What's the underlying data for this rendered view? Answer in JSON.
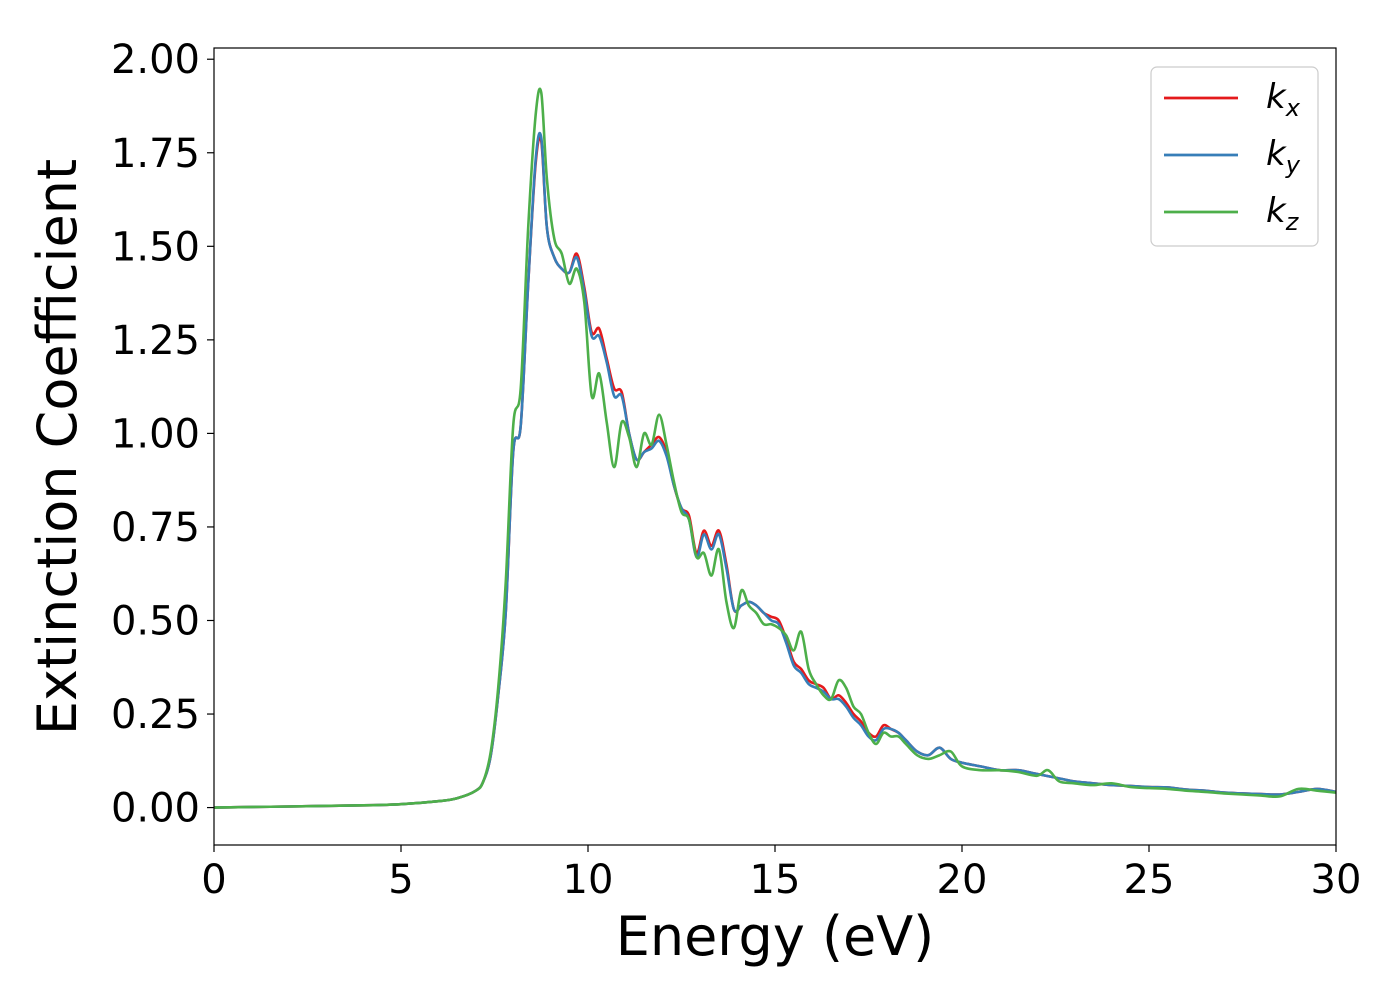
{
  "chart_data": {
    "type": "line",
    "xlabel": "Energy (eV)",
    "ylabel": "Extinction Coefficient",
    "xlim": [
      0,
      30
    ],
    "ylim": [
      -0.1,
      2.03
    ],
    "xticks": [
      0,
      5,
      10,
      15,
      20,
      25,
      30
    ],
    "xtick_labels": [
      "0",
      "5",
      "10",
      "15",
      "20",
      "25",
      "30"
    ],
    "yticks": [
      0,
      0.25,
      0.5,
      0.75,
      1.0,
      1.25,
      1.5,
      1.75,
      2.0
    ],
    "ytick_labels": [
      "0.00",
      "0.25",
      "0.50",
      "0.75",
      "1.00",
      "1.25",
      "1.50",
      "1.75",
      "2.00"
    ],
    "grid": false,
    "legend_position": "top-right",
    "series": [
      {
        "name": "k",
        "subscript": "x",
        "color": "#e41a1c",
        "points": [
          [
            0,
            0
          ],
          [
            2,
            0.003
          ],
          [
            4,
            0.006
          ],
          [
            5,
            0.009
          ],
          [
            6,
            0.017
          ],
          [
            6.5,
            0.025
          ],
          [
            7,
            0.045
          ],
          [
            7.2,
            0.07
          ],
          [
            7.4,
            0.14
          ],
          [
            7.6,
            0.3
          ],
          [
            7.8,
            0.52
          ],
          [
            8,
            0.95
          ],
          [
            8.2,
            1.02
          ],
          [
            8.4,
            1.4
          ],
          [
            8.6,
            1.72
          ],
          [
            8.75,
            1.78
          ],
          [
            8.9,
            1.55
          ],
          [
            9.1,
            1.47
          ],
          [
            9.3,
            1.44
          ],
          [
            9.5,
            1.43
          ],
          [
            9.7,
            1.48
          ],
          [
            9.9,
            1.39
          ],
          [
            10.1,
            1.27
          ],
          [
            10.3,
            1.28
          ],
          [
            10.5,
            1.2
          ],
          [
            10.7,
            1.12
          ],
          [
            10.9,
            1.11
          ],
          [
            11.1,
            1.0
          ],
          [
            11.3,
            0.93
          ],
          [
            11.5,
            0.95
          ],
          [
            11.7,
            0.97
          ],
          [
            11.9,
            0.99
          ],
          [
            12.1,
            0.95
          ],
          [
            12.3,
            0.86
          ],
          [
            12.5,
            0.8
          ],
          [
            12.7,
            0.78
          ],
          [
            12.9,
            0.68
          ],
          [
            13.1,
            0.74
          ],
          [
            13.3,
            0.7
          ],
          [
            13.5,
            0.74
          ],
          [
            13.7,
            0.65
          ],
          [
            13.9,
            0.53
          ],
          [
            14.1,
            0.54
          ],
          [
            14.3,
            0.55
          ],
          [
            14.5,
            0.54
          ],
          [
            14.7,
            0.52
          ],
          [
            14.9,
            0.51
          ],
          [
            15.1,
            0.5
          ],
          [
            15.3,
            0.45
          ],
          [
            15.5,
            0.39
          ],
          [
            15.7,
            0.37
          ],
          [
            15.9,
            0.34
          ],
          [
            16.1,
            0.33
          ],
          [
            16.3,
            0.32
          ],
          [
            16.5,
            0.29
          ],
          [
            16.7,
            0.3
          ],
          [
            16.9,
            0.28
          ],
          [
            17.1,
            0.25
          ],
          [
            17.3,
            0.23
          ],
          [
            17.5,
            0.2
          ],
          [
            17.7,
            0.19
          ],
          [
            17.9,
            0.22
          ],
          [
            18.1,
            0.21
          ],
          [
            18.3,
            0.2
          ],
          [
            18.5,
            0.18
          ],
          [
            18.8,
            0.15
          ],
          [
            19.1,
            0.14
          ],
          [
            19.4,
            0.16
          ],
          [
            19.7,
            0.13
          ],
          [
            20,
            0.12
          ],
          [
            20.5,
            0.11
          ],
          [
            21,
            0.1
          ],
          [
            21.5,
            0.1
          ],
          [
            22,
            0.09
          ],
          [
            22.5,
            0.08
          ],
          [
            23,
            0.07
          ],
          [
            23.5,
            0.065
          ],
          [
            24,
            0.06
          ],
          [
            24.5,
            0.058
          ],
          [
            25,
            0.055
          ],
          [
            25.5,
            0.054
          ],
          [
            26,
            0.048
          ],
          [
            26.5,
            0.045
          ],
          [
            27,
            0.04
          ],
          [
            27.5,
            0.038
          ],
          [
            28,
            0.036
          ],
          [
            28.5,
            0.035
          ],
          [
            29,
            0.042
          ],
          [
            29.5,
            0.05
          ],
          [
            30,
            0.042
          ]
        ]
      },
      {
        "name": "k",
        "subscript": "y",
        "color": "#377eb8",
        "points": [
          [
            0,
            0
          ],
          [
            2,
            0.003
          ],
          [
            4,
            0.006
          ],
          [
            5,
            0.009
          ],
          [
            6,
            0.017
          ],
          [
            6.5,
            0.025
          ],
          [
            7,
            0.045
          ],
          [
            7.2,
            0.07
          ],
          [
            7.4,
            0.14
          ],
          [
            7.6,
            0.3
          ],
          [
            7.8,
            0.52
          ],
          [
            8,
            0.95
          ],
          [
            8.2,
            1.02
          ],
          [
            8.4,
            1.4
          ],
          [
            8.6,
            1.73
          ],
          [
            8.75,
            1.79
          ],
          [
            8.9,
            1.55
          ],
          [
            9.1,
            1.47
          ],
          [
            9.3,
            1.44
          ],
          [
            9.5,
            1.43
          ],
          [
            9.7,
            1.47
          ],
          [
            9.9,
            1.38
          ],
          [
            10.1,
            1.26
          ],
          [
            10.3,
            1.26
          ],
          [
            10.5,
            1.19
          ],
          [
            10.7,
            1.1
          ],
          [
            10.9,
            1.1
          ],
          [
            11.1,
            1.0
          ],
          [
            11.3,
            0.93
          ],
          [
            11.5,
            0.95
          ],
          [
            11.7,
            0.96
          ],
          [
            11.9,
            0.98
          ],
          [
            12.1,
            0.94
          ],
          [
            12.3,
            0.86
          ],
          [
            12.5,
            0.8
          ],
          [
            12.7,
            0.77
          ],
          [
            12.9,
            0.67
          ],
          [
            13.1,
            0.73
          ],
          [
            13.3,
            0.69
          ],
          [
            13.5,
            0.73
          ],
          [
            13.7,
            0.64
          ],
          [
            13.9,
            0.53
          ],
          [
            14.1,
            0.54
          ],
          [
            14.3,
            0.55
          ],
          [
            14.5,
            0.54
          ],
          [
            14.7,
            0.52
          ],
          [
            14.9,
            0.5
          ],
          [
            15.1,
            0.49
          ],
          [
            15.3,
            0.44
          ],
          [
            15.5,
            0.38
          ],
          [
            15.7,
            0.36
          ],
          [
            15.9,
            0.33
          ],
          [
            16.1,
            0.32
          ],
          [
            16.3,
            0.31
          ],
          [
            16.5,
            0.29
          ],
          [
            16.7,
            0.29
          ],
          [
            16.9,
            0.27
          ],
          [
            17.1,
            0.24
          ],
          [
            17.3,
            0.22
          ],
          [
            17.5,
            0.19
          ],
          [
            17.7,
            0.18
          ],
          [
            17.9,
            0.21
          ],
          [
            18.1,
            0.21
          ],
          [
            18.3,
            0.2
          ],
          [
            18.5,
            0.18
          ],
          [
            18.8,
            0.15
          ],
          [
            19.1,
            0.14
          ],
          [
            19.4,
            0.16
          ],
          [
            19.7,
            0.13
          ],
          [
            20,
            0.12
          ],
          [
            20.5,
            0.11
          ],
          [
            21,
            0.1
          ],
          [
            21.5,
            0.1
          ],
          [
            22,
            0.09
          ],
          [
            22.5,
            0.08
          ],
          [
            23,
            0.07
          ],
          [
            23.5,
            0.065
          ],
          [
            24,
            0.06
          ],
          [
            24.5,
            0.058
          ],
          [
            25,
            0.055
          ],
          [
            25.5,
            0.054
          ],
          [
            26,
            0.048
          ],
          [
            26.5,
            0.045
          ],
          [
            27,
            0.04
          ],
          [
            27.5,
            0.038
          ],
          [
            28,
            0.036
          ],
          [
            28.5,
            0.035
          ],
          [
            29,
            0.042
          ],
          [
            29.5,
            0.05
          ],
          [
            30,
            0.042
          ]
        ]
      },
      {
        "name": "k",
        "subscript": "z",
        "color": "#4daf4a",
        "points": [
          [
            0,
            0
          ],
          [
            2,
            0.003
          ],
          [
            4,
            0.006
          ],
          [
            5,
            0.009
          ],
          [
            6,
            0.017
          ],
          [
            6.5,
            0.025
          ],
          [
            7,
            0.045
          ],
          [
            7.2,
            0.07
          ],
          [
            7.4,
            0.15
          ],
          [
            7.6,
            0.32
          ],
          [
            7.8,
            0.6
          ],
          [
            8,
            1.02
          ],
          [
            8.2,
            1.12
          ],
          [
            8.4,
            1.55
          ],
          [
            8.6,
            1.85
          ],
          [
            8.75,
            1.91
          ],
          [
            8.9,
            1.68
          ],
          [
            9.1,
            1.52
          ],
          [
            9.3,
            1.48
          ],
          [
            9.5,
            1.4
          ],
          [
            9.7,
            1.44
          ],
          [
            9.9,
            1.35
          ],
          [
            10.1,
            1.1
          ],
          [
            10.3,
            1.16
          ],
          [
            10.5,
            1.03
          ],
          [
            10.7,
            0.91
          ],
          [
            10.9,
            1.03
          ],
          [
            11.1,
            0.99
          ],
          [
            11.3,
            0.91
          ],
          [
            11.5,
            1.0
          ],
          [
            11.7,
            0.97
          ],
          [
            11.9,
            1.05
          ],
          [
            12.1,
            0.97
          ],
          [
            12.3,
            0.87
          ],
          [
            12.5,
            0.79
          ],
          [
            12.7,
            0.77
          ],
          [
            12.9,
            0.67
          ],
          [
            13.1,
            0.68
          ],
          [
            13.3,
            0.62
          ],
          [
            13.5,
            0.69
          ],
          [
            13.7,
            0.55
          ],
          [
            13.9,
            0.48
          ],
          [
            14.1,
            0.58
          ],
          [
            14.3,
            0.54
          ],
          [
            14.5,
            0.52
          ],
          [
            14.7,
            0.49
          ],
          [
            14.9,
            0.49
          ],
          [
            15.1,
            0.48
          ],
          [
            15.3,
            0.46
          ],
          [
            15.5,
            0.42
          ],
          [
            15.7,
            0.47
          ],
          [
            15.9,
            0.37
          ],
          [
            16.1,
            0.33
          ],
          [
            16.3,
            0.3
          ],
          [
            16.5,
            0.29
          ],
          [
            16.7,
            0.34
          ],
          [
            16.9,
            0.32
          ],
          [
            17.1,
            0.27
          ],
          [
            17.3,
            0.25
          ],
          [
            17.5,
            0.2
          ],
          [
            17.7,
            0.17
          ],
          [
            17.9,
            0.2
          ],
          [
            18.1,
            0.19
          ],
          [
            18.3,
            0.19
          ],
          [
            18.5,
            0.17
          ],
          [
            18.8,
            0.14
          ],
          [
            19.1,
            0.13
          ],
          [
            19.4,
            0.14
          ],
          [
            19.7,
            0.15
          ],
          [
            20,
            0.11
          ],
          [
            20.5,
            0.1
          ],
          [
            21,
            0.1
          ],
          [
            21.5,
            0.095
          ],
          [
            22,
            0.085
          ],
          [
            22.3,
            0.1
          ],
          [
            22.6,
            0.07
          ],
          [
            23,
            0.065
          ],
          [
            23.5,
            0.06
          ],
          [
            24,
            0.065
          ],
          [
            24.5,
            0.055
          ],
          [
            25,
            0.052
          ],
          [
            25.5,
            0.05
          ],
          [
            26,
            0.045
          ],
          [
            26.5,
            0.042
          ],
          [
            27,
            0.038
          ],
          [
            27.5,
            0.035
          ],
          [
            28,
            0.032
          ],
          [
            28.5,
            0.03
          ],
          [
            29,
            0.05
          ],
          [
            29.5,
            0.045
          ],
          [
            30,
            0.04
          ]
        ]
      }
    ]
  }
}
